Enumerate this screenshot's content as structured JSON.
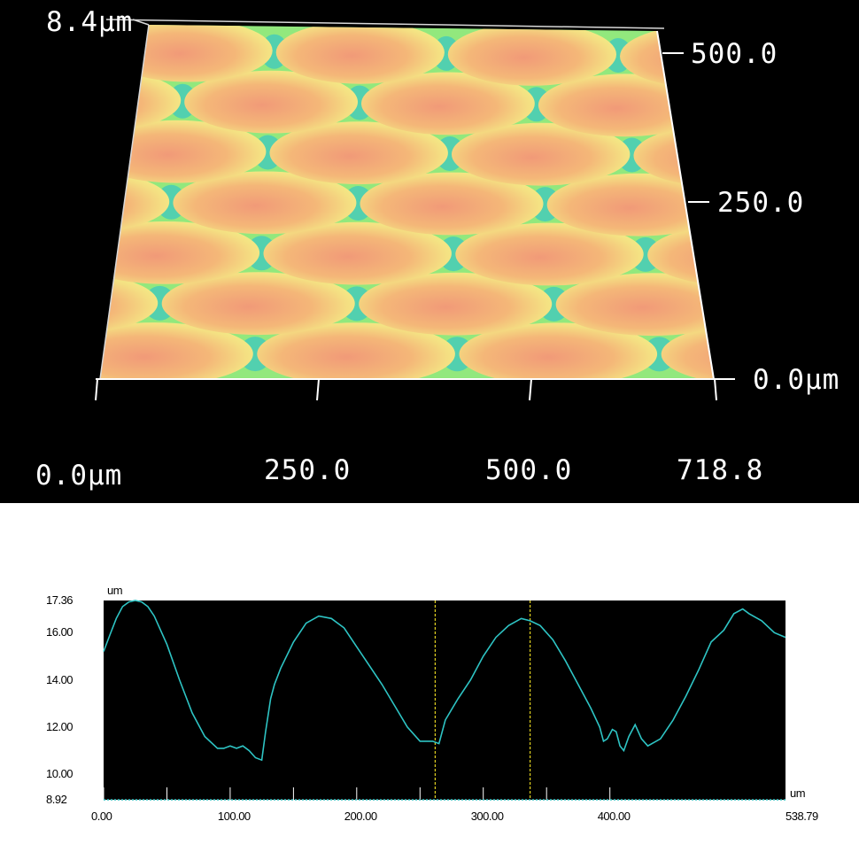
{
  "chart_data": [
    {
      "type": "surface-3d",
      "x_ticks": [
        "0.0µm",
        "250.0",
        "500.0",
        "718.8"
      ],
      "y_ticks": [
        "0.0µm",
        "250.0",
        "500.0"
      ],
      "z_max_label": "8.4µm",
      "x_range": [
        0,
        718.8
      ],
      "y_range": [
        0,
        500
      ],
      "z_range": [
        0,
        8.4
      ],
      "colors": {
        "background": "#000000",
        "peak": "#f2a07a",
        "mid": "#f5e880",
        "low": "#6fe27e",
        "valley": "#3cc8c0"
      }
    },
    {
      "type": "line",
      "xlabel": "um",
      "ylabel": "um",
      "x_tick_labels": [
        "0.00",
        "100.00",
        "200.00",
        "300.00",
        "400.00",
        "538.79"
      ],
      "y_tick_labels": [
        "17.36",
        "16.00",
        "14.00",
        "12.00",
        "10.00",
        "8.92"
      ],
      "xlim": [
        0,
        538.79
      ],
      "ylim": [
        8.92,
        17.36
      ],
      "cursor_x": [
        262,
        337
      ],
      "series": [
        {
          "color": "#2ec4c4",
          "x": [
            0,
            5,
            10,
            15,
            20,
            25,
            30,
            35,
            40,
            50,
            60,
            70,
            80,
            90,
            95,
            100,
            105,
            110,
            115,
            120,
            125,
            128,
            132,
            135,
            140,
            150,
            160,
            170,
            180,
            190,
            200,
            210,
            220,
            230,
            240,
            250,
            255,
            260,
            265,
            270,
            280,
            290,
            300,
            310,
            320,
            330,
            337,
            345,
            355,
            365,
            375,
            385,
            392,
            395,
            398,
            402,
            405,
            408,
            411,
            415,
            420,
            425,
            430,
            440,
            450,
            460,
            470,
            480,
            490,
            498,
            505,
            510,
            520,
            530,
            538.79
          ],
          "y": [
            15.2,
            15.9,
            16.6,
            17.1,
            17.3,
            17.36,
            17.3,
            17.1,
            16.7,
            15.5,
            14.0,
            12.6,
            11.6,
            11.1,
            11.1,
            11.2,
            11.1,
            11.2,
            11.0,
            10.7,
            10.6,
            11.8,
            13.2,
            13.8,
            14.5,
            15.6,
            16.4,
            16.7,
            16.6,
            16.2,
            15.4,
            14.6,
            13.8,
            12.9,
            12.0,
            11.4,
            11.4,
            11.4,
            11.3,
            12.3,
            13.2,
            14.0,
            15.0,
            15.8,
            16.3,
            16.6,
            16.5,
            16.3,
            15.7,
            14.8,
            13.8,
            12.8,
            12.0,
            11.4,
            11.5,
            11.9,
            11.8,
            11.2,
            11.0,
            11.6,
            12.1,
            11.5,
            11.2,
            11.5,
            12.3,
            13.3,
            14.4,
            15.6,
            16.1,
            16.8,
            17.0,
            16.8,
            16.5,
            16.0,
            15.8
          ]
        }
      ]
    }
  ]
}
